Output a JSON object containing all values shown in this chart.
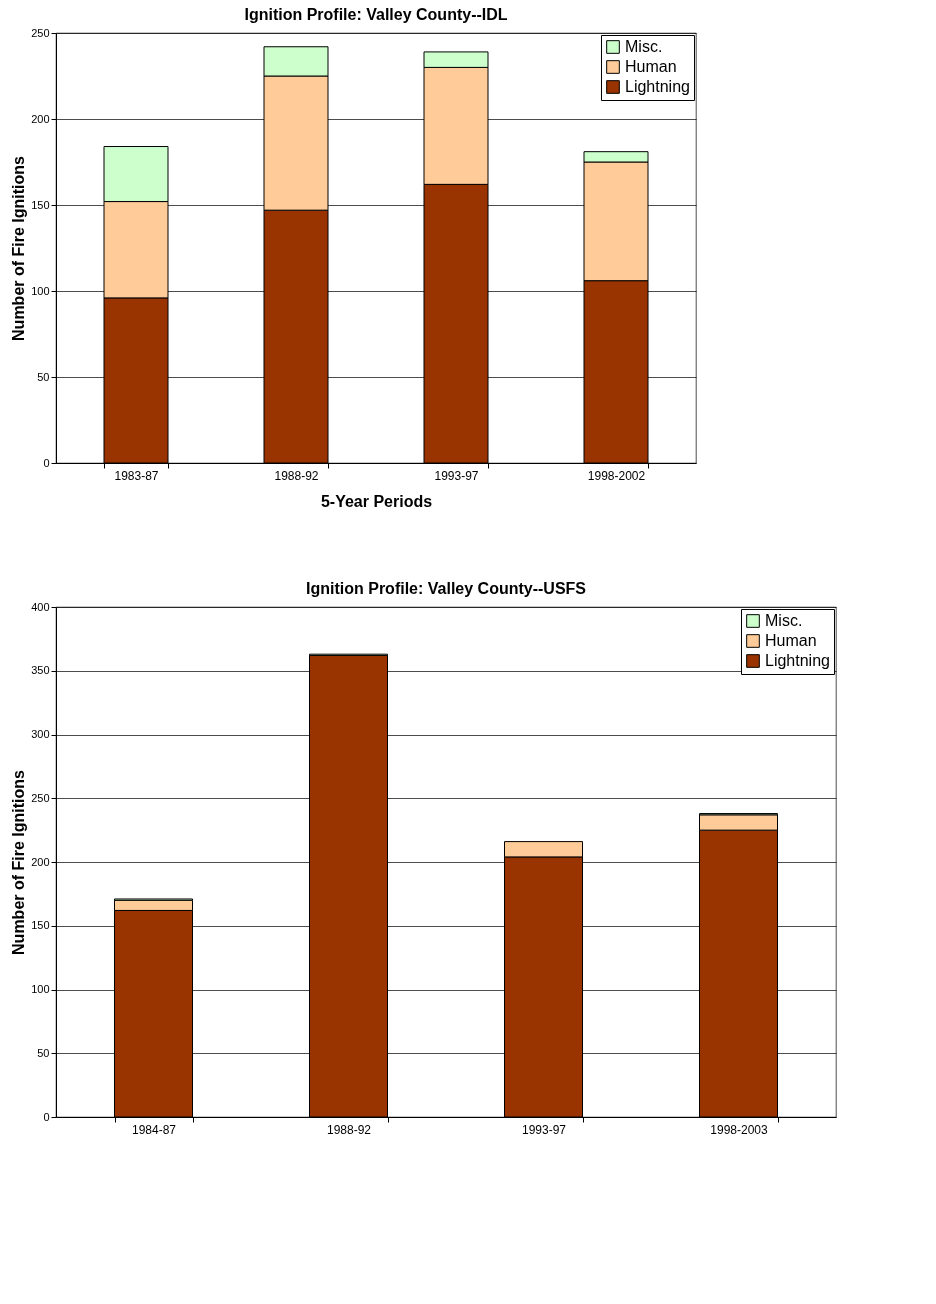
{
  "chart_data": [
    {
      "type": "bar",
      "title": "Ignition Profile: Valley County--IDL",
      "xlabel": "5-Year Periods",
      "ylabel": "Number of Fire Ignitions",
      "categories": [
        "1983-87",
        "1988-92",
        "1993-97",
        "1998-2002"
      ],
      "stacked": true,
      "ylim": [
        0,
        250
      ],
      "yticks": [
        0,
        50,
        100,
        150,
        200,
        250
      ],
      "grid": "y",
      "legend": "top right",
      "series": [
        {
          "name": "Lightning",
          "color": "#993300",
          "values": [
            96,
            147,
            162,
            106
          ]
        },
        {
          "name": "Human",
          "color": "#ffcc99",
          "values": [
            56,
            78,
            68,
            69
          ]
        },
        {
          "name": "Misc.",
          "color": "#ccffcc",
          "values": [
            32,
            17,
            9,
            6
          ]
        }
      ]
    },
    {
      "type": "bar",
      "title": "Ignition Profile: Valley County--USFS",
      "ylabel": "Number of Fire Ignitions",
      "categories": [
        "1984-87",
        "1988-92",
        "1993-97",
        "1998-2003"
      ],
      "stacked": true,
      "ylim": [
        0,
        400
      ],
      "yticks": [
        0,
        50,
        100,
        150,
        200,
        250,
        300,
        350,
        400
      ],
      "grid": "y",
      "legend": "top right",
      "series": [
        {
          "name": "Lightning",
          "color": "#993300",
          "values": [
            162,
            362,
            204,
            225
          ]
        },
        {
          "name": "Human",
          "color": "#ffcc99",
          "values": [
            8,
            null,
            12,
            12
          ]
        },
        {
          "name": "Misc.",
          "color": "#ccffcc",
          "values": [
            1,
            1,
            0,
            1
          ]
        }
      ]
    }
  ]
}
